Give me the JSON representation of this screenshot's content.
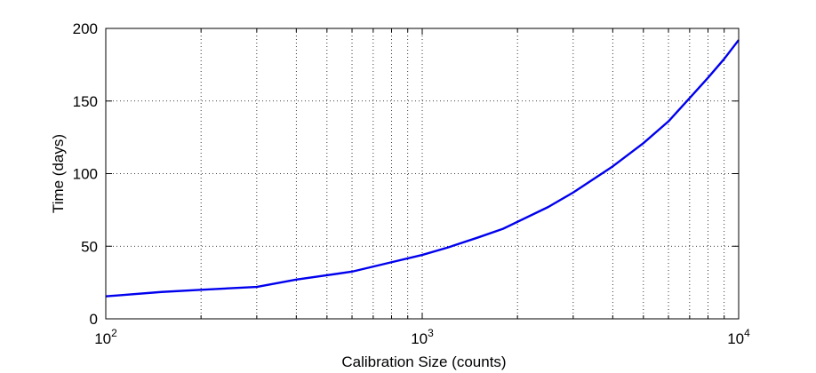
{
  "chart_data": {
    "type": "line",
    "title": "",
    "xlabel": "Calibration Size (counts)",
    "ylabel": "Time (days)",
    "xscale": "log",
    "xlim": [
      100,
      10000
    ],
    "ylim": [
      0,
      200
    ],
    "grid": true,
    "y_ticks": [
      0,
      50,
      100,
      150,
      200
    ],
    "x_ticks": [
      {
        "value": 100,
        "base": "10",
        "exp": "2"
      },
      {
        "value": 1000,
        "base": "10",
        "exp": "3"
      },
      {
        "value": 10000,
        "base": "10",
        "exp": "4"
      }
    ],
    "series": [
      {
        "name": "",
        "color": "#0000ee",
        "x": [
          100,
          150,
          200,
          300,
          400,
          600,
          800,
          1000,
          1200,
          1500,
          1800,
          2500,
          3000,
          4000,
          5000,
          6000,
          7000,
          8000,
          9000,
          10000
        ],
        "y": [
          15.5,
          18.5,
          20,
          22,
          27,
          32.5,
          39,
          44,
          49,
          56,
          62,
          77,
          87,
          105,
          121,
          136,
          152,
          166,
          179,
          192
        ]
      }
    ]
  }
}
